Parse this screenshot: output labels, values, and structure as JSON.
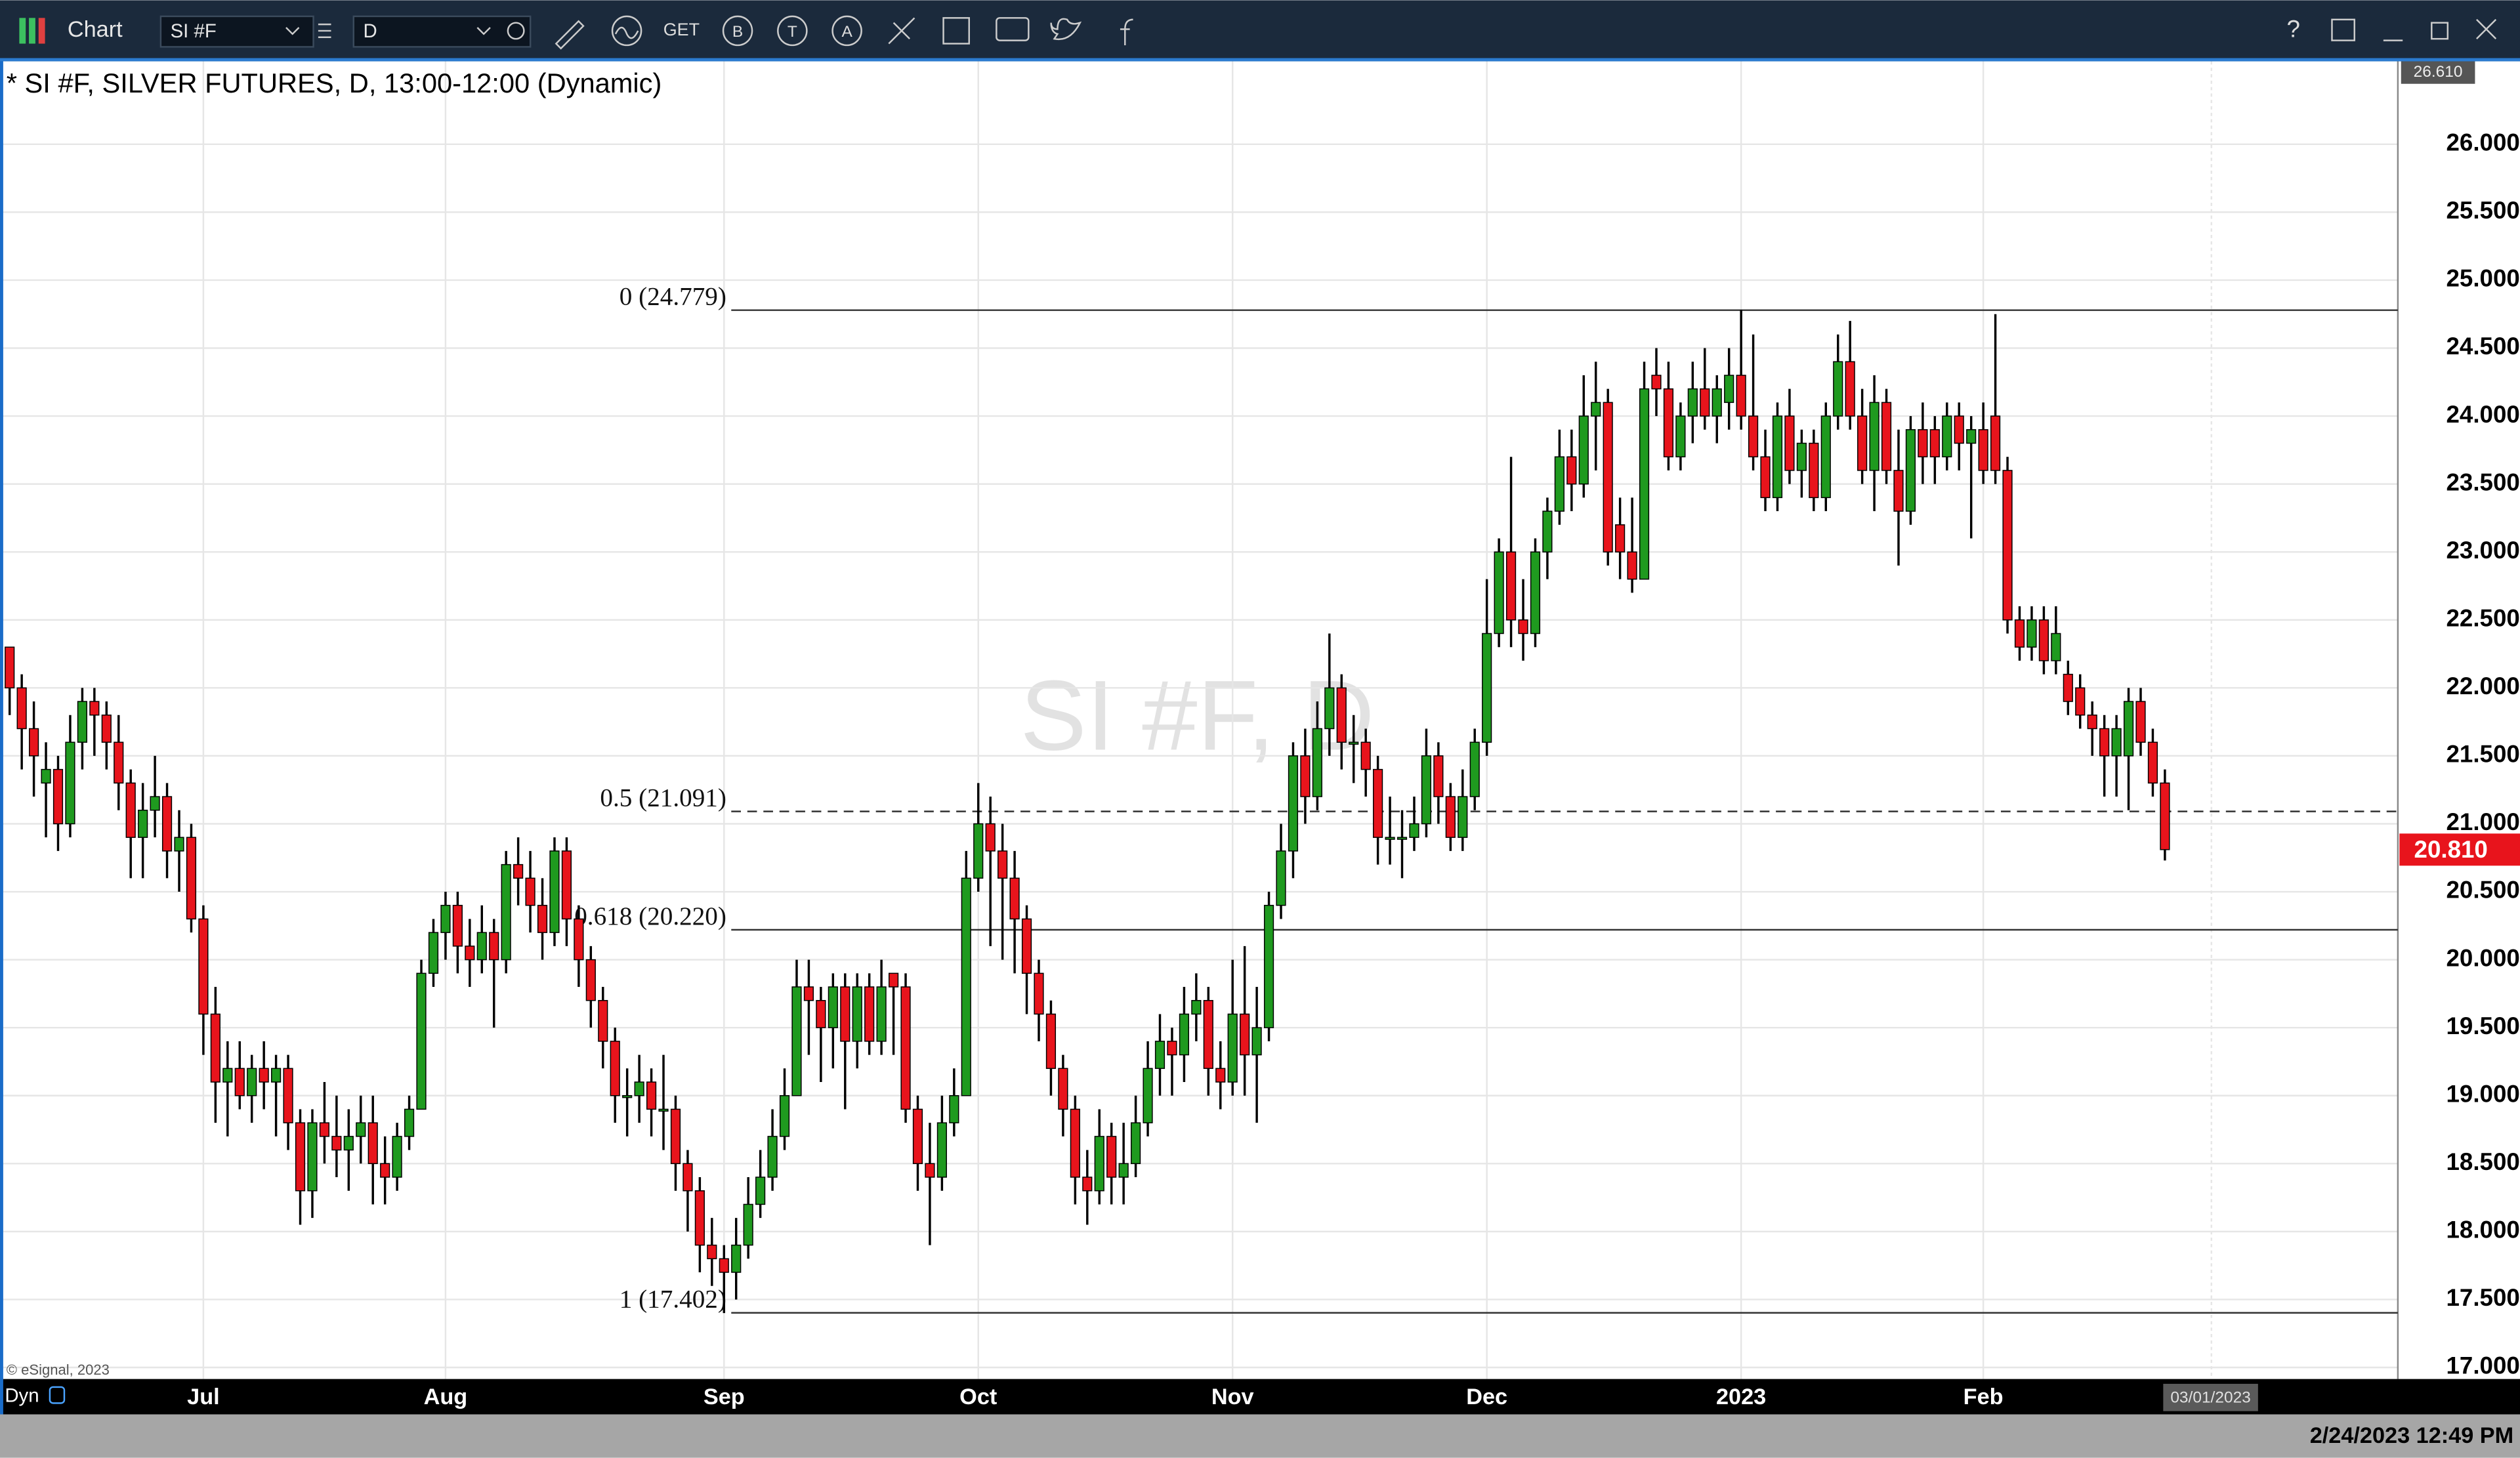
{
  "toolbar": {
    "title": "Chart",
    "symbol": "SI #F",
    "interval": "D",
    "get": "GET",
    "buttons": [
      "B",
      "T",
      "A"
    ],
    "help": "?"
  },
  "chart_data": {
    "type": "candlestick",
    "title": "* SI #F, SILVER FUTURES, D, 13:00-12:00 (Dynamic)",
    "watermark": "SI #F, D",
    "copyright": "© eSignal, 2023",
    "mode": "Dyn",
    "future_date": "03/01/2023",
    "categories": [
      null,
      null,
      null,
      null,
      null,
      null,
      null,
      null,
      null,
      null,
      null,
      null,
      null,
      null,
      null,
      null,
      "Jul",
      null,
      null,
      null,
      null,
      null,
      null,
      null,
      null,
      null,
      null,
      null,
      null,
      null,
      null,
      null,
      null,
      null,
      null,
      null,
      "Aug",
      null,
      null,
      null,
      null,
      null,
      null,
      null,
      null,
      null,
      null,
      null,
      null,
      null,
      null,
      null,
      null,
      null,
      null,
      null,
      null,
      null,
      null,
      "Sep",
      null,
      null,
      null,
      null,
      null,
      null,
      null,
      null,
      null,
      null,
      null,
      null,
      null,
      null,
      null,
      null,
      null,
      null,
      null,
      null,
      "Oct",
      null,
      null,
      null,
      null,
      null,
      null,
      null,
      null,
      null,
      null,
      null,
      null,
      null,
      null,
      null,
      null,
      null,
      null,
      null,
      null,
      "Nov",
      null,
      null,
      null,
      null,
      null,
      null,
      null,
      null,
      null,
      null,
      null,
      null,
      null,
      null,
      null,
      null,
      null,
      null,
      null,
      null,
      "Dec",
      null,
      null,
      null,
      null,
      null,
      null,
      null,
      null,
      null,
      null,
      null,
      null,
      null,
      null,
      null,
      null,
      null,
      null,
      null,
      null,
      "2023",
      null,
      null,
      null,
      null,
      null,
      null,
      null,
      null,
      null,
      null,
      null,
      null,
      null,
      null,
      null,
      null,
      null,
      null,
      null,
      "Feb",
      null,
      null,
      null,
      null,
      null,
      null,
      null,
      null,
      null,
      null,
      null,
      null,
      null,
      null,
      null
    ],
    "ohlc": [
      [
        22.3,
        22.3,
        21.8,
        22.0
      ],
      [
        22.0,
        22.1,
        21.4,
        21.7
      ],
      [
        21.7,
        21.9,
        21.2,
        21.5
      ],
      [
        21.3,
        21.6,
        20.9,
        21.4
      ],
      [
        21.4,
        21.5,
        20.8,
        21.0
      ],
      [
        21.0,
        21.8,
        20.9,
        21.6
      ],
      [
        21.6,
        22.0,
        21.4,
        21.9
      ],
      [
        21.9,
        22.0,
        21.5,
        21.8
      ],
      [
        21.8,
        21.9,
        21.4,
        21.6
      ],
      [
        21.6,
        21.8,
        21.1,
        21.3
      ],
      [
        21.3,
        21.4,
        20.6,
        20.9
      ],
      [
        20.9,
        21.3,
        20.6,
        21.1
      ],
      [
        21.1,
        21.5,
        20.9,
        21.2
      ],
      [
        21.2,
        21.3,
        20.6,
        20.8
      ],
      [
        20.8,
        21.1,
        20.5,
        20.9
      ],
      [
        20.9,
        21.0,
        20.2,
        20.3
      ],
      [
        20.3,
        20.4,
        19.3,
        19.6
      ],
      [
        19.6,
        19.8,
        18.8,
        19.1
      ],
      [
        19.1,
        19.4,
        18.7,
        19.2
      ],
      [
        19.2,
        19.4,
        18.9,
        19.0
      ],
      [
        19.0,
        19.3,
        18.8,
        19.2
      ],
      [
        19.2,
        19.4,
        18.9,
        19.1
      ],
      [
        19.1,
        19.3,
        18.7,
        19.2
      ],
      [
        19.2,
        19.3,
        18.6,
        18.8
      ],
      [
        18.8,
        18.9,
        18.05,
        18.3
      ],
      [
        18.3,
        18.9,
        18.1,
        18.8
      ],
      [
        18.8,
        19.1,
        18.5,
        18.7
      ],
      [
        18.7,
        19.0,
        18.4,
        18.6
      ],
      [
        18.6,
        18.9,
        18.3,
        18.7
      ],
      [
        18.7,
        19.0,
        18.5,
        18.8
      ],
      [
        18.8,
        19.0,
        18.2,
        18.5
      ],
      [
        18.5,
        18.7,
        18.2,
        18.4
      ],
      [
        18.4,
        18.8,
        18.3,
        18.7
      ],
      [
        18.7,
        19.0,
        18.6,
        18.9
      ],
      [
        18.9,
        20.0,
        18.9,
        19.9
      ],
      [
        19.9,
        20.3,
        19.8,
        20.2
      ],
      [
        20.2,
        20.5,
        20.0,
        20.4
      ],
      [
        20.4,
        20.5,
        19.9,
        20.1
      ],
      [
        20.1,
        20.3,
        19.8,
        20.0
      ],
      [
        20.0,
        20.4,
        19.9,
        20.2
      ],
      [
        20.2,
        20.3,
        19.5,
        20.0
      ],
      [
        20.0,
        20.8,
        19.9,
        20.7
      ],
      [
        20.7,
        20.9,
        20.4,
        20.6
      ],
      [
        20.6,
        20.8,
        20.2,
        20.4
      ],
      [
        20.4,
        20.6,
        20.0,
        20.2
      ],
      [
        20.2,
        20.9,
        20.1,
        20.8
      ],
      [
        20.8,
        20.9,
        20.1,
        20.3
      ],
      [
        20.3,
        20.4,
        19.8,
        20.0
      ],
      [
        20.0,
        20.1,
        19.5,
        19.7
      ],
      [
        19.7,
        19.8,
        19.2,
        19.4
      ],
      [
        19.4,
        19.5,
        18.8,
        19.0
      ],
      [
        19.0,
        19.2,
        18.7,
        19.0
      ],
      [
        19.0,
        19.3,
        18.8,
        19.1
      ],
      [
        19.1,
        19.2,
        18.7,
        18.9
      ],
      [
        18.9,
        19.3,
        18.6,
        18.9
      ],
      [
        18.9,
        19.0,
        18.3,
        18.5
      ],
      [
        18.5,
        18.6,
        18.0,
        18.3
      ],
      [
        18.3,
        18.4,
        17.7,
        17.9
      ],
      [
        17.9,
        18.1,
        17.6,
        17.8
      ],
      [
        17.8,
        17.9,
        17.4,
        17.7
      ],
      [
        17.7,
        18.1,
        17.5,
        17.9
      ],
      [
        17.9,
        18.4,
        17.8,
        18.2
      ],
      [
        18.2,
        18.6,
        18.1,
        18.4
      ],
      [
        18.4,
        18.9,
        18.3,
        18.7
      ],
      [
        18.7,
        19.2,
        18.6,
        19.0
      ],
      [
        19.0,
        20.0,
        19.0,
        19.8
      ],
      [
        19.8,
        20.0,
        19.3,
        19.7
      ],
      [
        19.7,
        19.8,
        19.1,
        19.5
      ],
      [
        19.5,
        19.9,
        19.2,
        19.8
      ],
      [
        19.8,
        19.9,
        18.9,
        19.4
      ],
      [
        19.4,
        19.9,
        19.2,
        19.8
      ],
      [
        19.8,
        19.9,
        19.3,
        19.4
      ],
      [
        19.4,
        20.0,
        19.3,
        19.8
      ],
      [
        19.9,
        19.9,
        19.3,
        19.8
      ],
      [
        19.8,
        19.9,
        18.8,
        18.9
      ],
      [
        18.9,
        19.0,
        18.3,
        18.5
      ],
      [
        18.5,
        18.8,
        17.9,
        18.4
      ],
      [
        18.4,
        19.0,
        18.3,
        18.8
      ],
      [
        18.8,
        19.2,
        18.7,
        19.0
      ],
      [
        19.0,
        20.8,
        19.0,
        20.6
      ],
      [
        20.6,
        21.3,
        20.5,
        21.0
      ],
      [
        21.0,
        21.2,
        20.1,
        20.8
      ],
      [
        20.8,
        21.0,
        20.0,
        20.6
      ],
      [
        20.6,
        20.8,
        19.9,
        20.3
      ],
      [
        20.3,
        20.4,
        19.6,
        19.9
      ],
      [
        19.9,
        20.0,
        19.4,
        19.6
      ],
      [
        19.6,
        19.7,
        19.0,
        19.2
      ],
      [
        19.2,
        19.3,
        18.7,
        18.9
      ],
      [
        18.9,
        19.0,
        18.2,
        18.4
      ],
      [
        18.4,
        18.6,
        18.05,
        18.3
      ],
      [
        18.3,
        18.9,
        18.2,
        18.7
      ],
      [
        18.7,
        18.8,
        18.2,
        18.4
      ],
      [
        18.4,
        18.8,
        18.2,
        18.5
      ],
      [
        18.5,
        19.0,
        18.4,
        18.8
      ],
      [
        18.8,
        19.4,
        18.7,
        19.2
      ],
      [
        19.2,
        19.6,
        19.0,
        19.4
      ],
      [
        19.4,
        19.5,
        19.0,
        19.3
      ],
      [
        19.3,
        19.8,
        19.1,
        19.6
      ],
      [
        19.6,
        19.9,
        19.4,
        19.7
      ],
      [
        19.7,
        19.8,
        19.0,
        19.2
      ],
      [
        19.2,
        19.4,
        18.9,
        19.1
      ],
      [
        19.1,
        20.0,
        19.0,
        19.6
      ],
      [
        19.6,
        20.1,
        19.0,
        19.3
      ],
      [
        19.3,
        19.8,
        18.8,
        19.5
      ],
      [
        19.5,
        20.5,
        19.4,
        20.4
      ],
      [
        20.4,
        21.0,
        20.3,
        20.8
      ],
      [
        20.8,
        21.6,
        20.6,
        21.5
      ],
      [
        21.5,
        21.7,
        21.0,
        21.2
      ],
      [
        21.2,
        21.9,
        21.1,
        21.7
      ],
      [
        21.7,
        22.4,
        21.5,
        22.0
      ],
      [
        22.0,
        22.1,
        21.4,
        21.6
      ],
      [
        21.6,
        21.8,
        21.3,
        21.6
      ],
      [
        21.6,
        21.7,
        21.2,
        21.4
      ],
      [
        21.4,
        21.5,
        20.7,
        20.9
      ],
      [
        20.9,
        21.2,
        20.7,
        20.9
      ],
      [
        20.9,
        21.1,
        20.6,
        20.9
      ],
      [
        20.9,
        21.2,
        20.8,
        21.0
      ],
      [
        21.0,
        21.7,
        20.9,
        21.5
      ],
      [
        21.5,
        21.6,
        21.0,
        21.2
      ],
      [
        21.2,
        21.3,
        20.8,
        20.9
      ],
      [
        20.9,
        21.4,
        20.8,
        21.2
      ],
      [
        21.2,
        21.7,
        21.1,
        21.6
      ],
      [
        21.6,
        22.8,
        21.5,
        22.4
      ],
      [
        22.4,
        23.1,
        22.3,
        23.0
      ],
      [
        23.0,
        23.7,
        22.3,
        22.5
      ],
      [
        22.5,
        22.8,
        22.2,
        22.4
      ],
      [
        22.4,
        23.1,
        22.3,
        23.0
      ],
      [
        23.0,
        23.4,
        22.8,
        23.3
      ],
      [
        23.3,
        23.9,
        23.2,
        23.7
      ],
      [
        23.7,
        23.9,
        23.3,
        23.5
      ],
      [
        23.5,
        24.3,
        23.4,
        24.0
      ],
      [
        24.0,
        24.4,
        23.6,
        24.1
      ],
      [
        24.1,
        24.2,
        22.9,
        23.0
      ],
      [
        23.2,
        23.4,
        22.8,
        23.0
      ],
      [
        23.0,
        23.4,
        22.7,
        22.8
      ],
      [
        22.8,
        24.4,
        22.8,
        24.2
      ],
      [
        24.3,
        24.5,
        24.0,
        24.2
      ],
      [
        24.2,
        24.4,
        23.6,
        23.7
      ],
      [
        23.7,
        24.1,
        23.6,
        24.0
      ],
      [
        24.0,
        24.4,
        23.8,
        24.2
      ],
      [
        24.2,
        24.5,
        23.9,
        24.0
      ],
      [
        24.0,
        24.3,
        23.8,
        24.2
      ],
      [
        24.1,
        24.5,
        23.9,
        24.3
      ],
      [
        24.3,
        24.78,
        23.9,
        24.0
      ],
      [
        24.0,
        24.6,
        23.6,
        23.7
      ],
      [
        23.7,
        23.9,
        23.3,
        23.4
      ],
      [
        23.4,
        24.1,
        23.3,
        24.0
      ],
      [
        24.0,
        24.2,
        23.5,
        23.6
      ],
      [
        23.6,
        23.9,
        23.4,
        23.8
      ],
      [
        23.8,
        23.9,
        23.3,
        23.4
      ],
      [
        23.4,
        24.1,
        23.3,
        24.0
      ],
      [
        24.0,
        24.6,
        23.9,
        24.4
      ],
      [
        24.4,
        24.7,
        23.9,
        24.0
      ],
      [
        24.0,
        24.2,
        23.5,
        23.6
      ],
      [
        23.6,
        24.3,
        23.3,
        24.1
      ],
      [
        24.1,
        24.2,
        23.5,
        23.6
      ],
      [
        23.6,
        23.9,
        22.9,
        23.3
      ],
      [
        23.3,
        24.0,
        23.2,
        23.9
      ],
      [
        23.9,
        24.1,
        23.5,
        23.7
      ],
      [
        23.9,
        24.0,
        23.5,
        23.7
      ],
      [
        23.7,
        24.1,
        23.6,
        24.0
      ],
      [
        24.0,
        24.1,
        23.6,
        23.8
      ],
      [
        23.8,
        24.0,
        23.1,
        23.9
      ],
      [
        23.9,
        24.1,
        23.5,
        23.6
      ],
      [
        24.0,
        24.75,
        23.5,
        23.6
      ],
      [
        23.6,
        23.7,
        22.4,
        22.5
      ],
      [
        22.5,
        22.6,
        22.2,
        22.3
      ],
      [
        22.3,
        22.6,
        22.2,
        22.5
      ],
      [
        22.5,
        22.6,
        22.1,
        22.2
      ],
      [
        22.2,
        22.6,
        22.1,
        22.4
      ],
      [
        22.1,
        22.2,
        21.8,
        21.9
      ],
      [
        22.0,
        22.1,
        21.7,
        21.8
      ],
      [
        21.8,
        21.9,
        21.5,
        21.7
      ],
      [
        21.7,
        21.8,
        21.2,
        21.5
      ],
      [
        21.5,
        21.8,
        21.2,
        21.7
      ],
      [
        21.5,
        22.0,
        21.1,
        21.9
      ],
      [
        21.9,
        22.0,
        21.5,
        21.6
      ],
      [
        21.6,
        21.7,
        21.2,
        21.3
      ],
      [
        21.3,
        21.4,
        20.73,
        20.81
      ]
    ],
    "up_color": "#1f9a1f",
    "down_color": "#e8141c",
    "ylim": [
      16.915,
      26.61
    ],
    "yticks": [
      {
        "value": 17,
        "label": "17.000"
      },
      {
        "value": 17.5,
        "label": "17.500"
      },
      {
        "value": 18,
        "label": "18.000"
      },
      {
        "value": 18.5,
        "label": "18.500"
      },
      {
        "value": 19,
        "label": "19.000"
      },
      {
        "value": 19.5,
        "label": "19.500"
      },
      {
        "value": 20,
        "label": "20.000"
      },
      {
        "value": 20.5,
        "label": "20.500"
      },
      {
        "value": 21,
        "label": "21.000"
      },
      {
        "value": 21.5,
        "label": "21.500"
      },
      {
        "value": 22,
        "label": "22.000"
      },
      {
        "value": 22.5,
        "label": "22.500"
      },
      {
        "value": 23,
        "label": "23.000"
      },
      {
        "value": 23.5,
        "label": "23.500"
      },
      {
        "value": 24,
        "label": "24.000"
      },
      {
        "value": 24.5,
        "label": "24.500"
      },
      {
        "value": 25,
        "label": "25.000"
      },
      {
        "value": 25.5,
        "label": "25.500"
      },
      {
        "value": 26,
        "label": "26.000"
      }
    ],
    "grid": true,
    "fib_levels": [
      {
        "value": 24.779,
        "label": "0 (24.779)",
        "dashed": false
      },
      {
        "value": 21.091,
        "label": "0.5 (21.091)",
        "dashed": true
      },
      {
        "value": 20.22,
        "label": "0.618 (20.220)",
        "dashed": false
      },
      {
        "value": 17.402,
        "label": "1 (17.402)",
        "dashed": false
      }
    ],
    "last_price": {
      "value": 20.81,
      "label": "20.810"
    },
    "top_price": {
      "value": 26.61,
      "label": "26.610"
    }
  },
  "status": {
    "timestamp": "2/24/2023 12:49 PM"
  }
}
